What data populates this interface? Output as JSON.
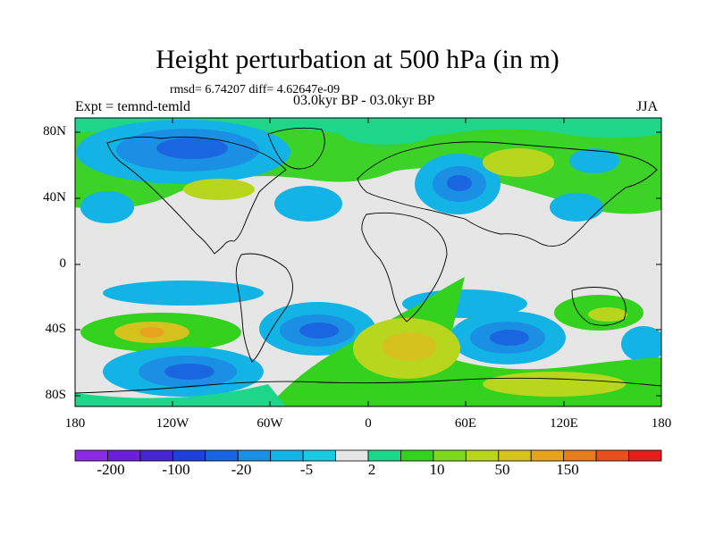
{
  "figure": {
    "title": "Height perturbation at 500 hPa (in m)",
    "stats": "rmsd= 6.74207 diff= 4.62647e-09",
    "experiment": "Expt = temnd-temld",
    "period": "03.0kyr BP - 03.0kyr BP",
    "season": "JJA"
  },
  "axes": {
    "lat_labels": [
      "80N",
      "40N",
      "0",
      "40S",
      "80S"
    ],
    "lon_labels": [
      "180",
      "120W",
      "60W",
      "0",
      "60E",
      "120E",
      "180"
    ]
  },
  "colorbar": {
    "labels": [
      "-200",
      "-100",
      "-20",
      "-5",
      "2",
      "10",
      "50",
      "150"
    ],
    "colors": [
      "#8a2be2",
      "#6a21d6",
      "#4525cc",
      "#1e3fd8",
      "#1a66e0",
      "#1b8fe4",
      "#13b3e6",
      "#1cc9e0",
      "#e6e6e6",
      "#1ed68a",
      "#34d11e",
      "#7ed81e",
      "#b8d61e",
      "#d6c21e",
      "#e6a41e",
      "#e67c1e",
      "#e6501e",
      "#e61e1e"
    ]
  },
  "legend_colors": {
    "map_neutral": "#e6e6e6",
    "strong_negative": "#1a66e0",
    "positive_green": "#34d11e",
    "positive_yellow": "#d6c21e"
  }
}
